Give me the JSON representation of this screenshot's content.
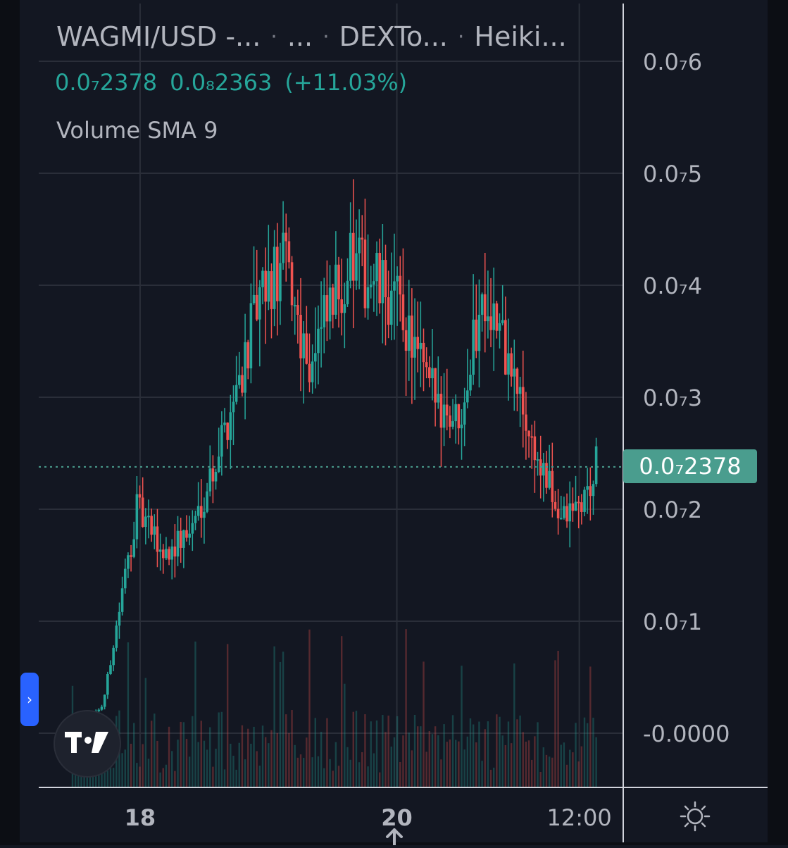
{
  "legend": {
    "symbol": "WAGMI/USD -...",
    "exchange": "...",
    "source": "DEXTo...",
    "chart_style": "Heiki...",
    "separator": "·",
    "price_open": "0.0₇2378",
    "price_prev": "0.0₈2363",
    "change": "(+11.03%)",
    "volume_indicator": "Volume SMA 9"
  },
  "current_price_label": "0.0₇2378",
  "icons": {
    "logo": "tradingview-logo-icon",
    "side_toggle": "chevron-right-icon",
    "settings": "sun-settings-icon",
    "scroll": "up-arrow-icon"
  },
  "colors": {
    "up": "#26a69a",
    "down": "#ef5350",
    "background": "#131722",
    "grid": "#2a2e39",
    "axis_text": "#b2b5be",
    "price_line": "#4a9d8e"
  },
  "chart_data": {
    "type": "candlestick",
    "title": "",
    "xlabel": "",
    "ylabel": "",
    "ylim": [
      0,
      6.5e-08
    ],
    "y_ticks": [
      {
        "value": 6e-08,
        "label": "0.0₇6"
      },
      {
        "value": 5e-08,
        "label": "0.0₇5"
      },
      {
        "value": 4e-08,
        "label": "0.0₇4"
      },
      {
        "value": 3e-08,
        "label": "0.0₇3"
      },
      {
        "value": 2e-08,
        "label": "0.0₇2"
      },
      {
        "value": 1e-08,
        "label": "0.0₇1"
      },
      {
        "value": 0.0,
        "label": "-0.0000"
      }
    ],
    "x_ticks": [
      {
        "value": 0.2,
        "label": "18"
      },
      {
        "value": 0.96,
        "label": "20"
      },
      {
        "value": 1.5,
        "label": "12:00"
      }
    ],
    "x_range_days": [
      -0.1,
      1.63
    ],
    "last_price": 2.378e-08,
    "grid": true,
    "volume_indicator": "Volume SMA 9",
    "anchors_day_price": [
      [
        0.0,
        0.0
      ],
      [
        0.09,
        2.5e-09
      ],
      [
        0.19,
        2e-08
      ],
      [
        0.27,
        1.6e-08
      ],
      [
        0.35,
        1.8e-08
      ],
      [
        0.43,
        2.5e-08
      ],
      [
        0.55,
        3.8e-08
      ],
      [
        0.63,
        4.2e-08
      ],
      [
        0.7,
        3.3e-08
      ],
      [
        0.82,
        4.2e-08
      ],
      [
        0.9,
        4e-08
      ],
      [
        0.97,
        3.8e-08
      ],
      [
        1.05,
        3.1e-08
      ],
      [
        1.14,
        2.8e-08
      ],
      [
        1.22,
        4e-08
      ],
      [
        1.3,
        3.2e-08
      ],
      [
        1.38,
        2.4e-08
      ],
      [
        1.45,
        1.9e-08
      ],
      [
        1.52,
        2.1e-08
      ],
      [
        1.55,
        2.378e-08
      ]
    ]
  }
}
